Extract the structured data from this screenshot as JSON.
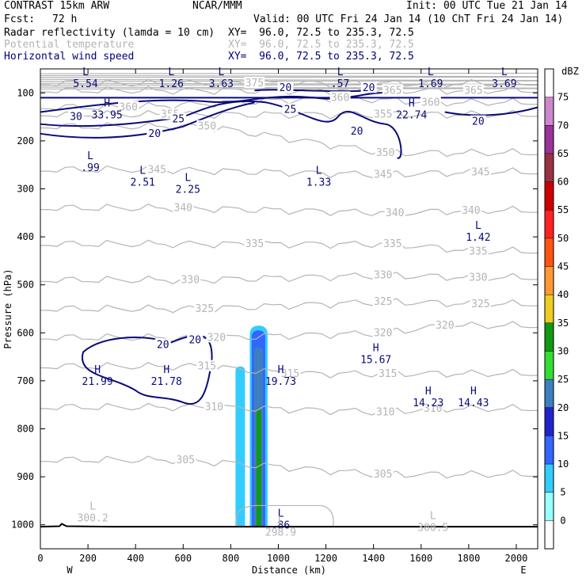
{
  "header": {
    "model": "CONTRAST 15km ARW",
    "org": "NCAR/MMM",
    "init": "Init: 00 UTC Tue 21 Jan 14",
    "fcst_label": "Fcst:",
    "fcst_value": "72 h",
    "valid": "Valid: 00 UTC Fri 24 Jan 14 (10 ChT Fri 24 Jan 14)",
    "fields": [
      {
        "name": "Radar reflectivity (lamda = 10 cm)",
        "xy": "XY=  96.0, 72.5 to 235.3, 72.5",
        "color": "#000000"
      },
      {
        "name": "Potential temperature",
        "xy": "XY=  96.0, 72.5 to 235.3, 72.5",
        "color": "#b4b4b4"
      },
      {
        "name": "Horizontal wind speed",
        "xy": "XY=  96.0, 72.5 to 235.3, 72.5",
        "color": "#00007a"
      }
    ]
  },
  "chart_data": {
    "type": "contour",
    "xlabel": "Distance (km)",
    "ylabel": "Pressure (hPa)",
    "xlim": [
      0,
      2090
    ],
    "ylim": [
      1050,
      50
    ],
    "x_ticks": [
      0,
      200,
      400,
      600,
      800,
      1000,
      1200,
      1400,
      1600,
      1800,
      2000
    ],
    "y_ticks": [
      100,
      200,
      300,
      400,
      500,
      600,
      700,
      800,
      900,
      1000
    ],
    "x_end_labels": {
      "left": "W",
      "right": "E"
    },
    "colorbar": {
      "unit": "dBZ",
      "levels": [
        0,
        5,
        10,
        15,
        20,
        25,
        30,
        35,
        40,
        45,
        50,
        55,
        60,
        65,
        70,
        75
      ],
      "colors": [
        "#ffffff",
        "#99ffff",
        "#33ccff",
        "#3366ff",
        "#2222cc",
        "#3d7fbf",
        "#33dd33",
        "#119911",
        "#eecc22",
        "#ff9933",
        "#ff5511",
        "#ff2222",
        "#cc0000",
        "#993344",
        "#993399",
        "#cc88cc",
        "#ffffff"
      ]
    },
    "theta_labels": [
      {
        "x": 370,
        "p": 130,
        "text": "360"
      },
      {
        "x": 545,
        "p": 145,
        "text": "355"
      },
      {
        "x": 700,
        "p": 170,
        "text": "350"
      },
      {
        "x": 490,
        "p": 260,
        "text": "345"
      },
      {
        "x": 1440,
        "p": 270,
        "text": "345"
      },
      {
        "x": 1850,
        "p": 265,
        "text": "345"
      },
      {
        "x": 600,
        "p": 340,
        "text": "340"
      },
      {
        "x": 1490,
        "p": 350,
        "text": "340"
      },
      {
        "x": 1810,
        "p": 345,
        "text": "340"
      },
      {
        "x": 900,
        "p": 415,
        "text": "335"
      },
      {
        "x": 1480,
        "p": 415,
        "text": "335"
      },
      {
        "x": 1840,
        "p": 430,
        "text": "335"
      },
      {
        "x": 630,
        "p": 490,
        "text": "330"
      },
      {
        "x": 1440,
        "p": 480,
        "text": "330"
      },
      {
        "x": 1840,
        "p": 485,
        "text": "330"
      },
      {
        "x": 690,
        "p": 550,
        "text": "325"
      },
      {
        "x": 1440,
        "p": 535,
        "text": "325"
      },
      {
        "x": 1850,
        "p": 540,
        "text": "325"
      },
      {
        "x": 740,
        "p": 610,
        "text": "320"
      },
      {
        "x": 1440,
        "p": 600,
        "text": "320"
      },
      {
        "x": 1700,
        "p": 585,
        "text": "320"
      },
      {
        "x": 700,
        "p": 670,
        "text": "315"
      },
      {
        "x": 1050,
        "p": 685,
        "text": "315"
      },
      {
        "x": 1460,
        "p": 685,
        "text": "315"
      },
      {
        "x": 730,
        "p": 755,
        "text": "310"
      },
      {
        "x": 1450,
        "p": 765,
        "text": "310"
      },
      {
        "x": 1650,
        "p": 758,
        "text": "310"
      },
      {
        "x": 610,
        "p": 865,
        "text": "305"
      },
      {
        "x": 1440,
        "p": 895,
        "text": "305"
      },
      {
        "x": 900,
        "p": 80,
        "text": "375"
      },
      {
        "x": 1480,
        "p": 95,
        "text": "365"
      },
      {
        "x": 1820,
        "p": 95,
        "text": "365"
      },
      {
        "x": 1260,
        "p": 110,
        "text": "360"
      },
      {
        "x": 1640,
        "p": 120,
        "text": "360"
      },
      {
        "x": 1440,
        "p": 145,
        "text": "355"
      },
      {
        "x": 1450,
        "p": 225,
        "text": "350"
      }
    ],
    "wind_labels": [
      {
        "x": 150,
        "p": 150,
        "text": "30"
      },
      {
        "x": 580,
        "p": 155,
        "text": "25"
      },
      {
        "x": 1050,
        "p": 135,
        "text": "25"
      },
      {
        "x": 480,
        "p": 185,
        "text": "20"
      },
      {
        "x": 1330,
        "p": 180,
        "text": "20"
      },
      {
        "x": 1030,
        "p": 90,
        "text": "20"
      },
      {
        "x": 1380,
        "p": 90,
        "text": "20"
      },
      {
        "x": 1840,
        "p": 160,
        "text": "20"
      },
      {
        "x": 515,
        "p": 625,
        "text": "20"
      },
      {
        "x": 650,
        "p": 615,
        "text": "20"
      }
    ],
    "extrema": [
      {
        "x": 190,
        "p": 70,
        "kind": "L",
        "value": "5.54"
      },
      {
        "x": 550,
        "p": 70,
        "kind": "L",
        "value": "1.26"
      },
      {
        "x": 760,
        "p": 70,
        "kind": "L",
        "value": "3.63"
      },
      {
        "x": 1260,
        "p": 70,
        "kind": "L",
        "value": ".57"
      },
      {
        "x": 1640,
        "p": 70,
        "kind": "L",
        "value": "1.69"
      },
      {
        "x": 1950,
        "p": 70,
        "kind": "L",
        "value": "3.69"
      },
      {
        "x": 280,
        "p": 135,
        "kind": "H",
        "value": "33.95"
      },
      {
        "x": 1560,
        "p": 135,
        "kind": "H",
        "value": "22.74"
      },
      {
        "x": 210,
        "p": 245,
        "kind": "L",
        "value": ".99"
      },
      {
        "x": 430,
        "p": 275,
        "kind": "L",
        "value": "2.51"
      },
      {
        "x": 620,
        "p": 290,
        "kind": "L",
        "value": "2.25"
      },
      {
        "x": 1170,
        "p": 275,
        "kind": "L",
        "value": "1.33"
      },
      {
        "x": 1840,
        "p": 390,
        "kind": "L",
        "value": "1.42"
      },
      {
        "x": 1410,
        "p": 645,
        "kind": "H",
        "value": "15.67"
      },
      {
        "x": 240,
        "p": 690,
        "kind": "H",
        "value": "21.99"
      },
      {
        "x": 530,
        "p": 690,
        "kind": "H",
        "value": "21.78"
      },
      {
        "x": 1010,
        "p": 690,
        "kind": "H",
        "value": "19.73"
      },
      {
        "x": 1630,
        "p": 735,
        "kind": "H",
        "value": "14.23"
      },
      {
        "x": 1820,
        "p": 735,
        "kind": "H",
        "value": "14.43"
      },
      {
        "x": 220,
        "p": 975,
        "kind": "L",
        "value": "300.2"
      },
      {
        "x": 1010,
        "p": 990,
        "kind": "L",
        "value": ".86"
      },
      {
        "x": 1010,
        "p": 1005,
        "kind": "L",
        "value": "298.9"
      },
      {
        "x": 1650,
        "p": 995,
        "kind": "L",
        "value": "300.5"
      }
    ],
    "terrain": [
      [
        0,
        1004
      ],
      [
        80,
        1003
      ],
      [
        90,
        998
      ],
      [
        110,
        1003
      ],
      [
        300,
        1004
      ],
      [
        2090,
        1004
      ]
    ],
    "reflectivity": [
      {
        "dbz": 5,
        "x0": 820,
        "x1": 860,
        "ptop": 670,
        "pbot": 1005
      },
      {
        "dbz": 5,
        "x0": 880,
        "x1": 955,
        "ptop": 585,
        "pbot": 1005
      },
      {
        "dbz": 10,
        "x0": 888,
        "x1": 945,
        "ptop": 595,
        "pbot": 1005
      },
      {
        "dbz": 20,
        "x0": 898,
        "x1": 935,
        "ptop": 630,
        "pbot": 1005
      },
      {
        "dbz": 30,
        "x0": 908,
        "x1": 928,
        "ptop": 760,
        "pbot": 1005
      }
    ]
  }
}
